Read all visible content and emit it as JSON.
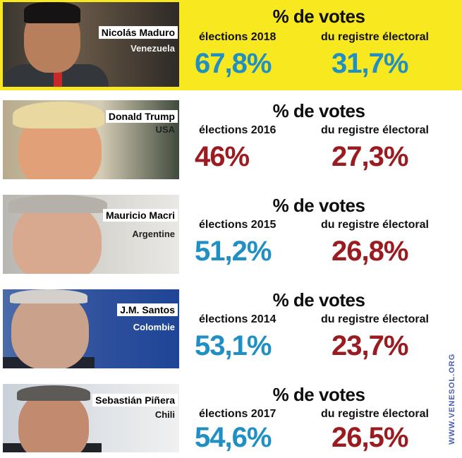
{
  "rows": [
    {
      "name": "Nicolás Maduro",
      "country": "Venezuela",
      "heading": "% de votes",
      "left_label": "élections 2018",
      "right_label": "du registre électoral",
      "left_value": "67,8%",
      "right_value": "31,7%",
      "left_color": "#1f8fc4",
      "right_color": "#1f8fc4",
      "background": "#f7e81f"
    },
    {
      "name": "Donald Trump",
      "country": "USA",
      "heading": "% de votes",
      "left_label": "élections 2016",
      "right_label": "du registre électoral",
      "left_value": "46%",
      "right_value": "27,3%",
      "left_color": "#9b1c20",
      "right_color": "#9b1c20"
    },
    {
      "name": "Mauricio Macri",
      "country": "Argentine",
      "heading": "% de votes",
      "left_label": "élections 2015",
      "right_label": "du registre électoral",
      "left_value": "51,2%",
      "right_value": "26,8%",
      "left_color": "#1f8fc4",
      "right_color": "#9b1c20"
    },
    {
      "name": "J.M. Santos",
      "country": "Colombie",
      "heading": "% de votes",
      "left_label": "élections 2014",
      "right_label": "du registre électoral",
      "left_value": "53,1%",
      "right_value": "23,7%",
      "left_color": "#1f8fc4",
      "right_color": "#9b1c20"
    },
    {
      "name": "Sebastián Piñera",
      "country": "Chili",
      "heading": "% de votes",
      "left_label": "élections 2017",
      "right_label": "du registre électoral",
      "left_value": "54,6%",
      "right_value": "26,5%",
      "left_color": "#1f8fc4",
      "right_color": "#9b1c20"
    }
  ],
  "watermark": "WWW.VENESOL.ORG"
}
